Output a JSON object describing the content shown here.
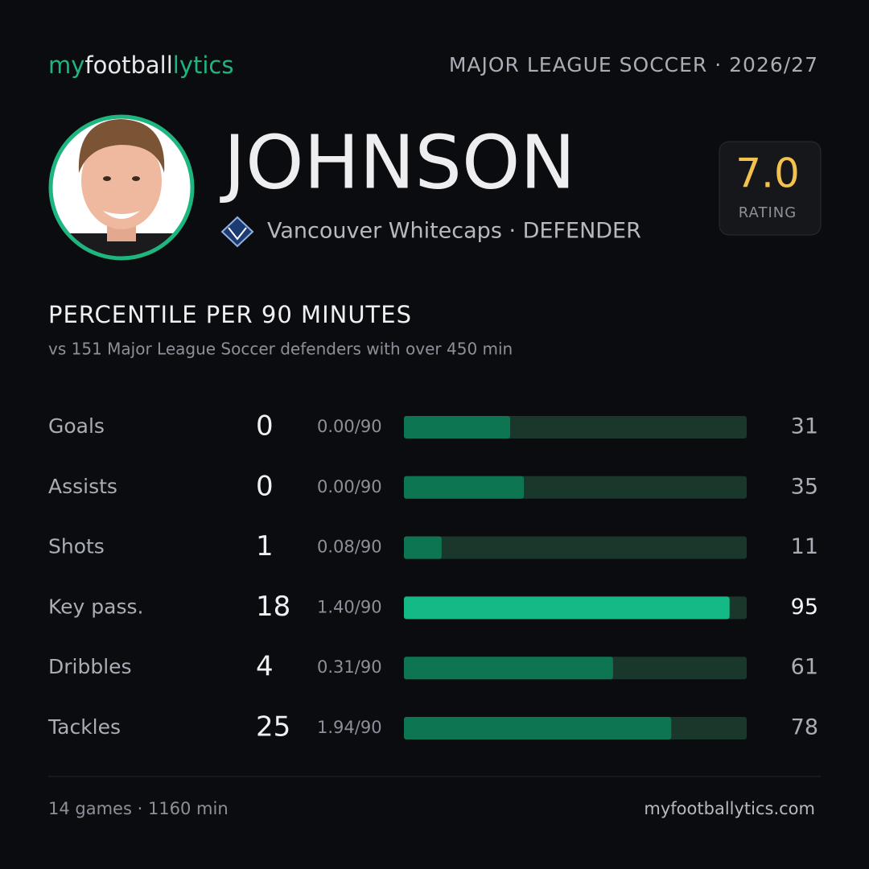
{
  "header": {
    "brand": [
      "my",
      "football",
      "lytics"
    ],
    "league": "MAJOR LEAGUE SOCCER · 2026/27"
  },
  "player": {
    "name": "JOHNSON",
    "team": "Vancouver Whitecaps · DEFENDER",
    "rating": "7.0",
    "rating_label": "RATING"
  },
  "stats": {
    "title": "PERCENTILE PER 90 MINUTES",
    "subtitle": "vs 151 Major League Soccer defenders with over 450 min",
    "xlim": [
      0,
      100
    ],
    "rows": [
      {
        "label": "Goals",
        "total": "0",
        "per90": "0.00/90",
        "percentile": 31,
        "color": "#0e7552"
      },
      {
        "label": "Assists",
        "total": "0",
        "per90": "0.00/90",
        "percentile": 35,
        "color": "#0e7552"
      },
      {
        "label": "Shots",
        "total": "1",
        "per90": "0.08/90",
        "percentile": 11,
        "color": "#0e7552"
      },
      {
        "label": "Key pass.",
        "total": "18",
        "per90": "1.40/90",
        "percentile": 95,
        "color": "#14b985"
      },
      {
        "label": "Dribbles",
        "total": "4",
        "per90": "0.31/90",
        "percentile": 61,
        "color": "#0e7552"
      },
      {
        "label": "Tackles",
        "total": "25",
        "per90": "1.94/90",
        "percentile": 78,
        "color": "#0e7552"
      }
    ]
  },
  "footer": {
    "summary": "14 games · 1160 min",
    "site": "myfootballytics.com"
  }
}
